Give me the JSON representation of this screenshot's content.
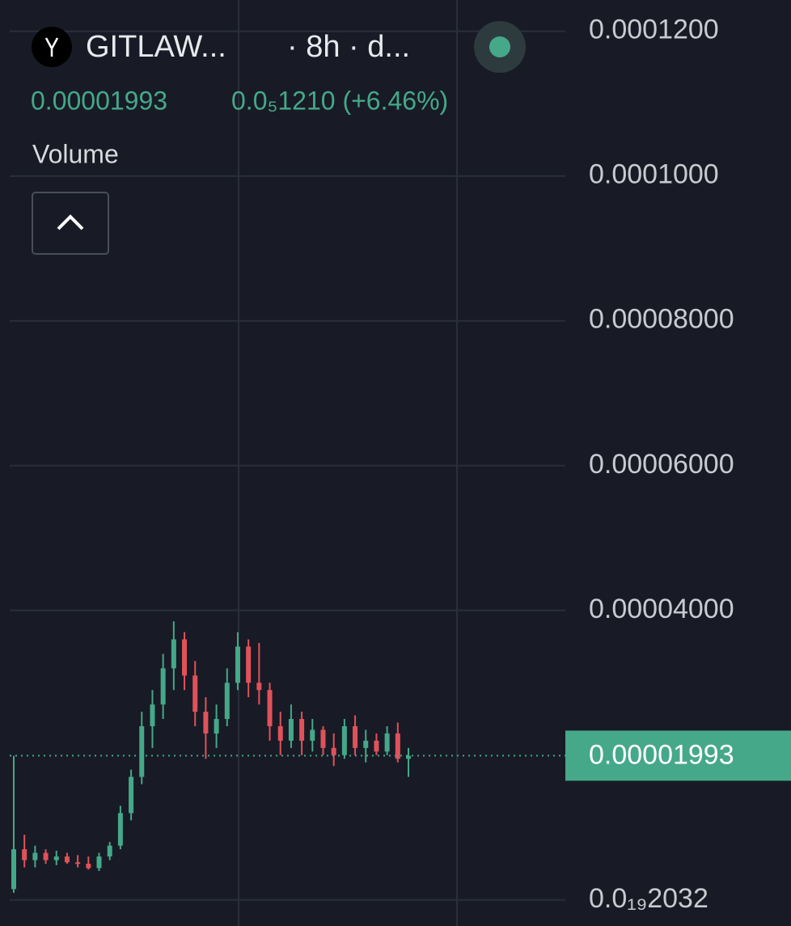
{
  "chart_data": {
    "type": "candlestick",
    "symbol": "GITLAW...",
    "interval": "· 8h · d...",
    "change": "0.0₅1210 (+6.46%)",
    "indicator": "Volume",
    "last_price": {
      "value": 1.993e-05,
      "label": "0.00001993"
    },
    "up_color": "#45a889",
    "down_color": "#e0525a",
    "ylim": [
      -3.6e-06,
      0.00012433
    ],
    "yticks": [
      {
        "value": 2.032e-20,
        "label": "0.0₁₉2032"
      },
      {
        "value": 4e-05,
        "label": "0.00004000"
      },
      {
        "value": 6e-05,
        "label": "0.00006000"
      },
      {
        "value": 8e-05,
        "label": "0.00008000"
      },
      {
        "value": 0.0001,
        "label": "0.0001000"
      },
      {
        "value": 0.00012,
        "label": "0.0001200"
      }
    ],
    "grid": true,
    "open": [
      1.5e-06,
      7e-06,
      5.5e-06,
      6.5e-06,
      5.5e-06,
      6e-06,
      5.2e-06,
      5e-06,
      4.4e-06,
      6e-06,
      7.5e-06,
      1.2e-05,
      1.7e-05,
      2.4e-05,
      2.7e-05,
      3.2e-05,
      3.6e-05,
      3.1e-05,
      2.6e-05,
      2.3e-05,
      2.5e-05,
      3e-05,
      3.5e-05,
      3e-05,
      2.9e-05,
      2.4e-05,
      2.2e-05,
      2.5e-05,
      2.2e-05,
      2.35e-05,
      2.1e-05,
      2e-05,
      2.4e-05,
      2.1e-05,
      2.2e-05,
      2.05e-05,
      2.3e-05,
      1.95e-05
    ],
    "high": [
      1.99e-05,
      9e-06,
      7.5e-06,
      7e-06,
      6.8e-06,
      6.5e-06,
      6.2e-06,
      6e-06,
      6.5e-06,
      8e-06,
      1.3e-05,
      1.8e-05,
      2.6e-05,
      2.9e-05,
      3.4e-05,
      3.85e-05,
      3.7e-05,
      3.3e-05,
      2.8e-05,
      2.7e-05,
      3.2e-05,
      3.7e-05,
      3.6e-05,
      3.55e-05,
      3e-05,
      2.6e-05,
      2.7e-05,
      2.6e-05,
      2.5e-05,
      2.4e-05,
      2.3e-05,
      2.5e-05,
      2.55e-05,
      2.35e-05,
      2.3e-05,
      2.4e-05,
      2.45e-05,
      2.1e-05
    ],
    "low": [
      1e-06,
      4.5e-06,
      4.5e-06,
      5e-06,
      4.8e-06,
      5e-06,
      4.5e-06,
      4.2e-06,
      4e-06,
      5.5e-06,
      7e-06,
      1.1e-05,
      1.6e-05,
      2.1e-05,
      2.5e-05,
      2.9e-05,
      2.9e-05,
      2.4e-05,
      1.95e-05,
      2.1e-05,
      2.4e-05,
      2.9e-05,
      2.8e-05,
      2.7e-05,
      2.2e-05,
      2e-05,
      2.1e-05,
      2e-05,
      2.05e-05,
      2e-05,
      1.85e-05,
      1.95e-05,
      2e-05,
      1.9e-05,
      2e-05,
      2e-05,
      1.9e-05,
      1.7e-05
    ],
    "close": [
      7e-06,
      5.5e-06,
      6.5e-06,
      5.5e-06,
      6e-06,
      5.2e-06,
      5e-06,
      4.4e-06,
      6e-06,
      7.5e-06,
      1.2e-05,
      1.7e-05,
      2.4e-05,
      2.7e-05,
      3.2e-05,
      3.6e-05,
      3.1e-05,
      2.6e-05,
      2.3e-05,
      2.5e-05,
      3e-05,
      3.5e-05,
      3e-05,
      2.9e-05,
      2.4e-05,
      2.2e-05,
      2.5e-05,
      2.2e-05,
      2.35e-05,
      2.1e-05,
      2e-05,
      2.4e-05,
      2.1e-05,
      2.2e-05,
      2.05e-05,
      2.3e-05,
      1.95e-05,
      1.99e-05
    ]
  }
}
